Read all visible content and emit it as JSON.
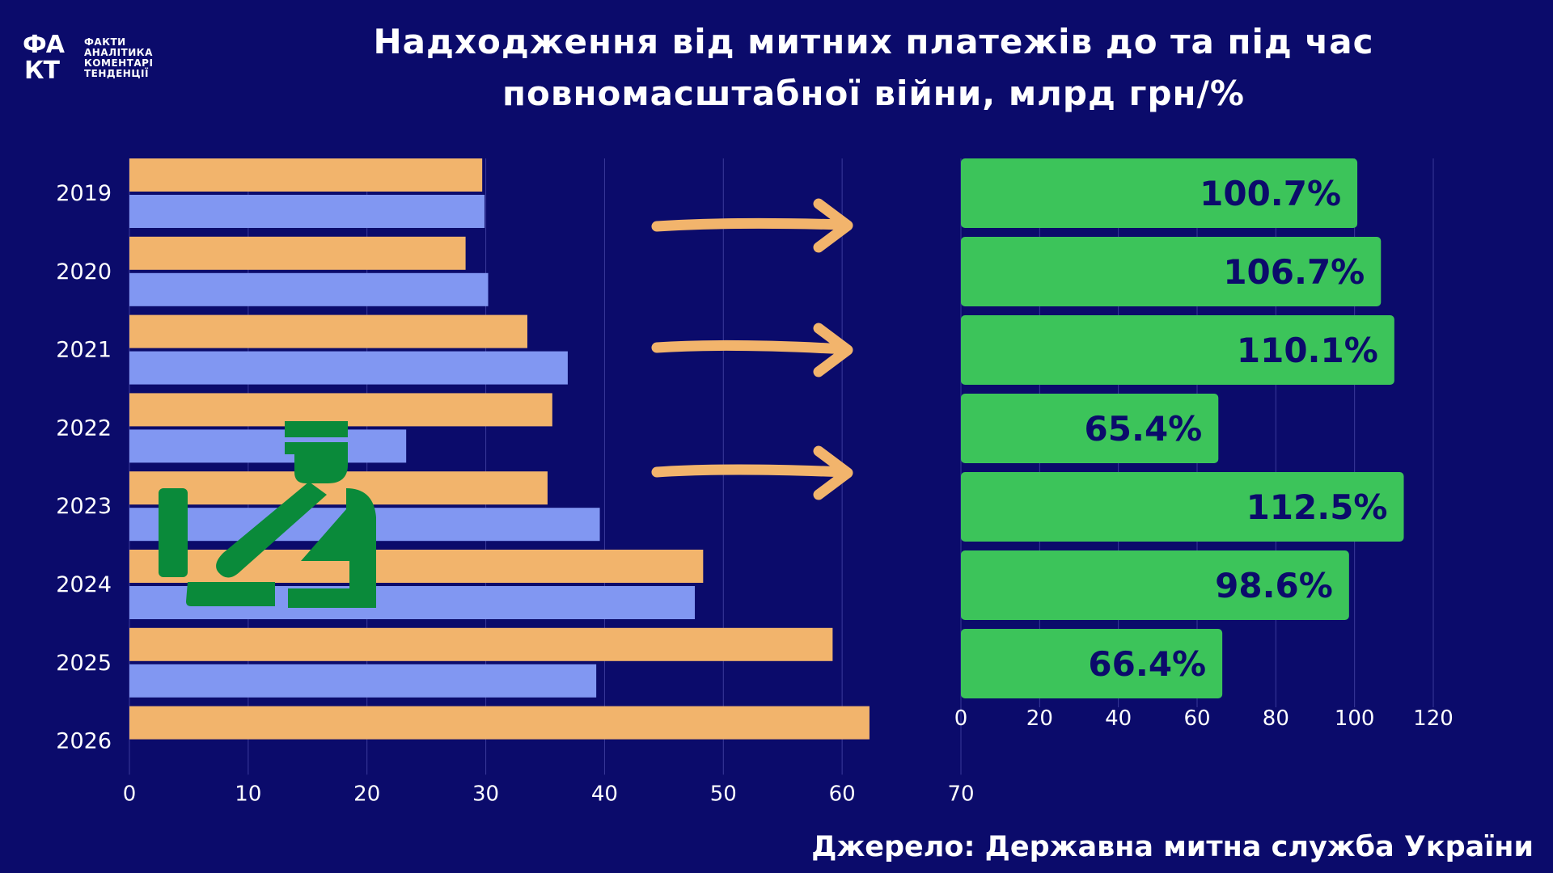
{
  "header": {
    "title_line1": "Надходження від митних платежів до та під час",
    "title_line2": "повномасштабної війни, млрд грн/%"
  },
  "logo": {
    "mark_line1": "ФА",
    "mark_line2": "КТ",
    "words": [
      "ФАКТИ",
      "АНАЛІТИКА",
      "КОМЕНТАРІ",
      "ТЕНДЕНЦІЇ"
    ]
  },
  "footer": {
    "source": "Джерело: Державна митна служба України"
  },
  "colors": {
    "background": "#0b0b6b",
    "orange": "#f2b46c",
    "blue": "#8197f2",
    "green": "#3cc45a",
    "icon_green": "#0a8a3a",
    "percent_text": "#0b0b6b"
  },
  "icons": [
    "customs-officer-icon",
    "arrow-right-icon"
  ],
  "chart_data": [
    {
      "type": "bar",
      "orientation": "horizontal",
      "categories": [
        "2019",
        "2020",
        "2021",
        "2022",
        "2023",
        "2024",
        "2025",
        "2026"
      ],
      "series": [
        {
          "values": [
            29.7,
            28.3,
            33.5,
            35.6,
            35.2,
            48.3,
            59.2,
            62.3
          ]
        },
        {
          "values": [
            29.9,
            30.2,
            36.9,
            23.3,
            39.6,
            47.6,
            39.3,
            null
          ]
        }
      ],
      "xlim": [
        0,
        70
      ],
      "xticks": [
        0,
        10,
        20,
        30,
        40,
        50,
        60,
        70
      ],
      "grid": true
    },
    {
      "type": "bar",
      "orientation": "horizontal",
      "categories": [
        "2019",
        "2020",
        "2021",
        "2022",
        "2023",
        "2024",
        "2025"
      ],
      "values": [
        100.7,
        106.7,
        110.1,
        65.4,
        112.5,
        98.6,
        66.4
      ],
      "labels": [
        "100.7%",
        "106.7%",
        "110.1%",
        "65.4%",
        "112.5%",
        "98.6%",
        "66.4%"
      ],
      "xlim": [
        0,
        120
      ],
      "xticks": [
        0,
        20,
        40,
        60,
        80,
        100,
        120
      ],
      "grid": true
    }
  ]
}
